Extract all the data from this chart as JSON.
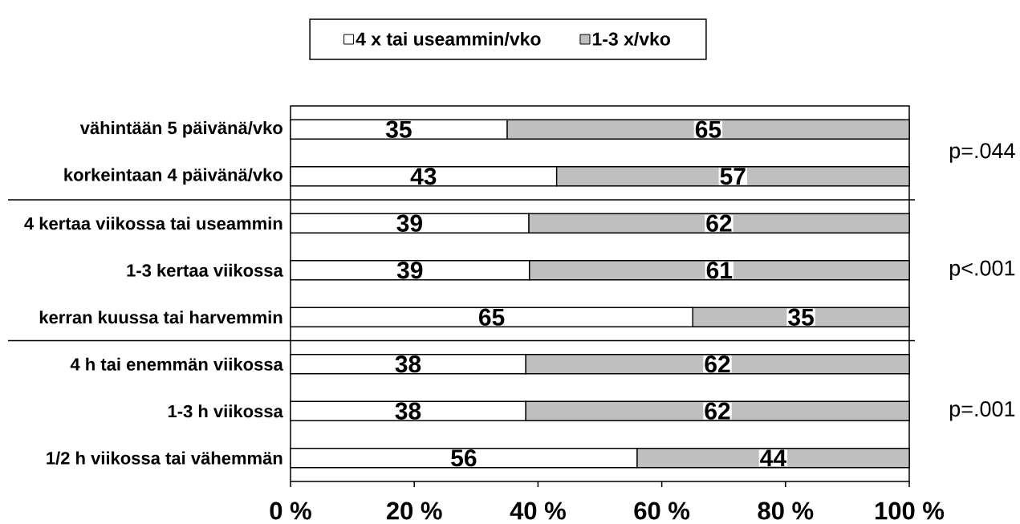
{
  "chart_data": {
    "type": "bar",
    "orientation": "horizontal",
    "stacked": true,
    "categories": [
      "vähintään 5 päivänä/vko",
      "korkeintaan 4 päivänä/vko",
      "4 kertaa viikossa tai useammin",
      "1-3 kertaa viikossa",
      "kerran kuussa tai harvemmin",
      "4 h tai enemmän viikossa",
      "1-3 h viikossa",
      "1/2 h viikossa tai vähemmän"
    ],
    "series": [
      {
        "name": "4 x tai useammin/vko",
        "color": "#ffffff",
        "values": [
          35,
          43,
          38.5,
          38.6,
          65,
          38,
          38,
          56
        ],
        "value_labels": [
          "35",
          "43",
          "39",
          "39",
          "65",
          "38",
          "38",
          "56"
        ]
      },
      {
        "name": "1-3 x/vko",
        "color": "#bfbfbf",
        "values": [
          65,
          57,
          61.5,
          61.4,
          35,
          62,
          62,
          44
        ],
        "value_labels": [
          "65",
          "57",
          "62",
          "61",
          "35",
          "62",
          "62",
          "44"
        ]
      }
    ],
    "xlim": [
      0,
      100
    ],
    "xticks": [
      {
        "value": 0,
        "label": "0 %"
      },
      {
        "value": 20,
        "label": "20 %"
      },
      {
        "value": 40,
        "label": "40 %"
      },
      {
        "value": 60,
        "label": "60 %"
      },
      {
        "value": 80,
        "label": "80 %"
      },
      {
        "value": 100,
        "label": "100 %"
      }
    ],
    "legend": "top",
    "annotations": [
      "p=.044",
      "p<.001",
      "p=.001"
    ]
  }
}
